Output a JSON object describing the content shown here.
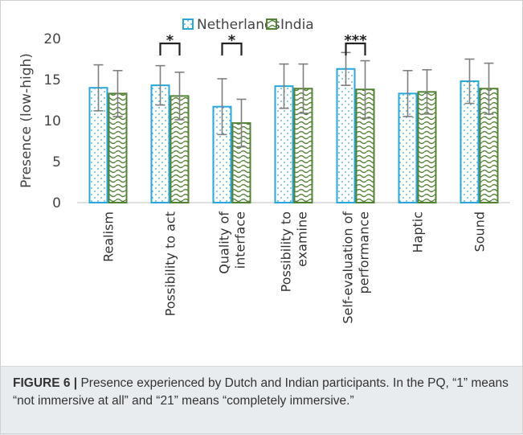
{
  "chart_data": {
    "type": "bar",
    "ylabel": "Presence (low-high)",
    "ylim": [
      0,
      20
    ],
    "yticks": [
      0,
      5,
      10,
      15,
      20
    ],
    "categories": [
      [
        "Realism"
      ],
      [
        "Possibility to act"
      ],
      [
        "Quality of",
        "interface"
      ],
      [
        "Possibility to",
        "examine"
      ],
      [
        "Self-evaluation of",
        "performance"
      ],
      [
        "Haptic"
      ],
      [
        "Sound"
      ]
    ],
    "series": [
      {
        "name": "Netherlands",
        "color": "#2aa7d8",
        "values": [
          14.0,
          14.3,
          11.7,
          14.2,
          16.3,
          13.3,
          14.8
        ],
        "errors": [
          2.8,
          2.4,
          3.4,
          2.7,
          2.0,
          2.8,
          2.7
        ]
      },
      {
        "name": "India",
        "color": "#548235",
        "values": [
          13.3,
          13.0,
          9.7,
          13.9,
          13.8,
          13.5,
          13.9
        ],
        "errors": [
          2.8,
          2.9,
          2.9,
          3.0,
          3.5,
          2.7,
          3.1
        ]
      }
    ],
    "significance": [
      {
        "category_index": 1,
        "label": "*"
      },
      {
        "category_index": 2,
        "label": "*"
      },
      {
        "category_index": 4,
        "label": "***"
      }
    ],
    "legend": "top-center",
    "grid": false
  },
  "caption": {
    "figure_label": "FIGURE 6 |",
    "text": " Presence experienced by Dutch and Indian participants. In the PQ, “1” means “not immersive at all” and “21” means “completely immersive.”"
  }
}
